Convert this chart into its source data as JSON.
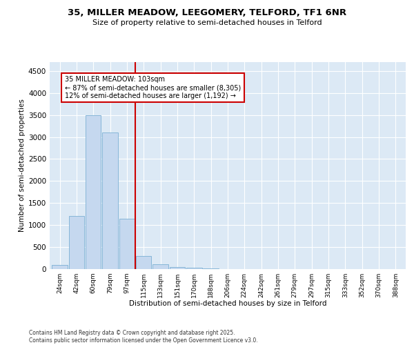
{
  "title_line1": "35, MILLER MEADOW, LEEGOMERY, TELFORD, TF1 6NR",
  "title_line2": "Size of property relative to semi-detached houses in Telford",
  "xlabel": "Distribution of semi-detached houses by size in Telford",
  "ylabel": "Number of semi-detached properties",
  "categories": [
    "24sqm",
    "42sqm",
    "60sqm",
    "79sqm",
    "97sqm",
    "115sqm",
    "133sqm",
    "151sqm",
    "170sqm",
    "188sqm",
    "206sqm",
    "224sqm",
    "242sqm",
    "261sqm",
    "279sqm",
    "297sqm",
    "315sqm",
    "333sqm",
    "352sqm",
    "370sqm",
    "388sqm"
  ],
  "values": [
    100,
    1200,
    3500,
    3100,
    1150,
    300,
    110,
    50,
    30,
    10,
    5,
    2,
    1,
    0,
    0,
    0,
    0,
    0,
    0,
    0,
    0
  ],
  "bar_color": "#c5d8ef",
  "bar_edge_color": "#7bafd4",
  "vline_color": "#cc0000",
  "annotation_title": "35 MILLER MEADOW: 103sqm",
  "annotation_line1": "← 87% of semi-detached houses are smaller (8,305)",
  "annotation_line2": "12% of semi-detached houses are larger (1,192) →",
  "annotation_box_color": "#cc0000",
  "ylim": [
    0,
    4700
  ],
  "yticks": [
    0,
    500,
    1000,
    1500,
    2000,
    2500,
    3000,
    3500,
    4000,
    4500
  ],
  "bg_color": "#dce9f5",
  "grid_color": "#ffffff",
  "footer_line1": "Contains HM Land Registry data © Crown copyright and database right 2025.",
  "footer_line2": "Contains public sector information licensed under the Open Government Licence v3.0."
}
